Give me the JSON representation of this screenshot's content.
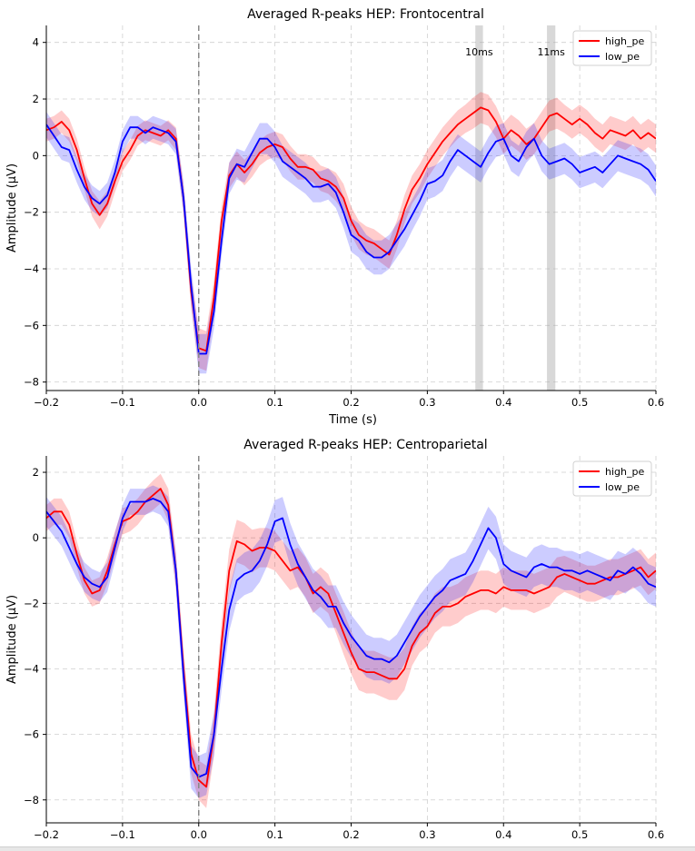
{
  "chart_data": [
    {
      "type": "line",
      "title": "Averaged R-peaks HEP: Frontocentral",
      "xlabel": "Time (s)",
      "ylabel": "Amplitude (µV)",
      "xlim": [
        -0.2,
        0.6
      ],
      "ylim": [
        -8.3,
        4.6
      ],
      "xticks": [
        -0.2,
        -0.1,
        0.0,
        0.1,
        0.2,
        0.3,
        0.4,
        0.5,
        0.6
      ],
      "xtick_labels": [
        "−0.2",
        "−0.1",
        "0.0",
        "0.1",
        "0.2",
        "0.3",
        "0.4",
        "0.5",
        "0.6"
      ],
      "yticks": [
        -8,
        -6,
        -4,
        -2,
        0,
        2,
        4
      ],
      "ytick_labels": [
        "−8",
        "−6",
        "−4",
        "−2",
        "0",
        "2",
        "4"
      ],
      "grid": true,
      "legend_position": "top-right",
      "event_line_x": 0.0,
      "x": [
        -0.2,
        -0.19,
        -0.18,
        -0.17,
        -0.16,
        -0.15,
        -0.14,
        -0.13,
        -0.12,
        -0.11,
        -0.1,
        -0.09,
        -0.08,
        -0.07,
        -0.06,
        -0.05,
        -0.04,
        -0.03,
        -0.02,
        -0.01,
        0.0,
        0.01,
        0.02,
        0.03,
        0.04,
        0.05,
        0.06,
        0.07,
        0.08,
        0.09,
        0.1,
        0.11,
        0.12,
        0.13,
        0.14,
        0.15,
        0.16,
        0.17,
        0.18,
        0.19,
        0.2,
        0.21,
        0.22,
        0.23,
        0.24,
        0.25,
        0.26,
        0.27,
        0.28,
        0.29,
        0.3,
        0.31,
        0.32,
        0.33,
        0.34,
        0.35,
        0.36,
        0.37,
        0.38,
        0.39,
        0.4,
        0.41,
        0.42,
        0.43,
        0.44,
        0.45,
        0.46,
        0.47,
        0.48,
        0.49,
        0.5,
        0.51,
        0.52,
        0.53,
        0.54,
        0.55,
        0.56,
        0.57,
        0.58,
        0.59,
        0.6
      ],
      "series": [
        {
          "name": "high_pe",
          "color": "#ff0000",
          "band_color": "#ff0000",
          "values": [
            0.9,
            1.0,
            1.2,
            0.9,
            0.2,
            -0.8,
            -1.7,
            -2.1,
            -1.7,
            -0.9,
            -0.2,
            0.2,
            0.7,
            0.9,
            0.8,
            0.7,
            0.9,
            0.6,
            -1.5,
            -4.8,
            -6.8,
            -6.9,
            -5.0,
            -2.3,
            -0.7,
            -0.3,
            -0.6,
            -0.3,
            0.1,
            0.3,
            0.4,
            0.3,
            -0.1,
            -0.4,
            -0.4,
            -0.5,
            -0.8,
            -0.9,
            -1.1,
            -1.5,
            -2.3,
            -2.8,
            -3.0,
            -3.1,
            -3.3,
            -3.5,
            -2.8,
            -1.9,
            -1.2,
            -0.8,
            -0.3,
            0.1,
            0.5,
            0.8,
            1.1,
            1.3,
            1.5,
            1.7,
            1.6,
            1.2,
            0.6,
            0.9,
            0.7,
            0.4,
            0.6,
            1.0,
            1.4,
            1.5,
            1.3,
            1.1,
            1.3,
            1.1,
            0.8,
            0.6,
            0.9,
            0.8,
            0.7,
            0.9,
            0.6,
            0.8,
            0.6
          ],
          "error": [
            0.4,
            0.4,
            0.4,
            0.4,
            0.4,
            0.4,
            0.45,
            0.5,
            0.45,
            0.4,
            0.35,
            0.35,
            0.35,
            0.35,
            0.35,
            0.35,
            0.35,
            0.4,
            0.5,
            0.6,
            0.7,
            0.7,
            0.6,
            0.5,
            0.45,
            0.45,
            0.45,
            0.45,
            0.45,
            0.45,
            0.45,
            0.45,
            0.45,
            0.45,
            0.45,
            0.45,
            0.45,
            0.45,
            0.5,
            0.5,
            0.5,
            0.5,
            0.5,
            0.5,
            0.5,
            0.5,
            0.5,
            0.5,
            0.5,
            0.5,
            0.5,
            0.5,
            0.5,
            0.5,
            0.5,
            0.5,
            0.55,
            0.55,
            0.55,
            0.55,
            0.55,
            0.55,
            0.55,
            0.55,
            0.55,
            0.55,
            0.55,
            0.55,
            0.5,
            0.5,
            0.5,
            0.5,
            0.5,
            0.5,
            0.5,
            0.5,
            0.5,
            0.5,
            0.5,
            0.5,
            0.5
          ]
        },
        {
          "name": "low_pe",
          "color": "#0000ff",
          "band_color": "#0000ff",
          "values": [
            1.1,
            0.7,
            0.3,
            0.2,
            -0.5,
            -1.1,
            -1.5,
            -1.7,
            -1.4,
            -0.6,
            0.5,
            1.0,
            1.0,
            0.8,
            1.0,
            0.9,
            0.8,
            0.5,
            -1.5,
            -4.6,
            -7.0,
            -7.0,
            -5.5,
            -3.0,
            -0.8,
            -0.3,
            -0.4,
            0.1,
            0.6,
            0.6,
            0.3,
            -0.2,
            -0.4,
            -0.6,
            -0.8,
            -1.1,
            -1.1,
            -1.0,
            -1.3,
            -2.0,
            -2.8,
            -3.0,
            -3.4,
            -3.6,
            -3.6,
            -3.4,
            -3.0,
            -2.6,
            -2.1,
            -1.6,
            -1.0,
            -0.9,
            -0.7,
            -0.2,
            0.2,
            0.0,
            -0.2,
            -0.4,
            0.1,
            0.5,
            0.6,
            0.0,
            -0.2,
            0.3,
            0.6,
            0.0,
            -0.3,
            -0.2,
            -0.1,
            -0.3,
            -0.6,
            -0.5,
            -0.4,
            -0.6,
            -0.3,
            0.0,
            -0.1,
            -0.2,
            -0.3,
            -0.5,
            -0.9
          ],
          "error": [
            0.45,
            0.45,
            0.45,
            0.45,
            0.45,
            0.45,
            0.45,
            0.45,
            0.45,
            0.45,
            0.4,
            0.4,
            0.4,
            0.4,
            0.4,
            0.4,
            0.4,
            0.45,
            0.55,
            0.65,
            0.7,
            0.7,
            0.6,
            0.55,
            0.55,
            0.55,
            0.55,
            0.55,
            0.55,
            0.55,
            0.55,
            0.55,
            0.55,
            0.55,
            0.55,
            0.55,
            0.55,
            0.55,
            0.55,
            0.55,
            0.6,
            0.6,
            0.6,
            0.6,
            0.6,
            0.6,
            0.6,
            0.6,
            0.55,
            0.55,
            0.55,
            0.55,
            0.55,
            0.55,
            0.55,
            0.55,
            0.55,
            0.55,
            0.55,
            0.55,
            0.55,
            0.55,
            0.55,
            0.55,
            0.55,
            0.55,
            0.55,
            0.55,
            0.55,
            0.55,
            0.55,
            0.55,
            0.55,
            0.55,
            0.55,
            0.55,
            0.55,
            0.55,
            0.55,
            0.55,
            0.55
          ]
        }
      ],
      "highlight_regions": [
        {
          "label": "10ms",
          "x_start": 0.363,
          "x_end": 0.373
        },
        {
          "label": "11ms",
          "x_start": 0.457,
          "x_end": 0.468
        }
      ]
    },
    {
      "type": "line",
      "title": "Averaged R-peaks HEP: Centroparietal",
      "xlabel": "Time (s)",
      "ylabel": "Amplitude (µV)",
      "xlim": [
        -0.2,
        0.6
      ],
      "ylim": [
        -8.7,
        2.5
      ],
      "xticks": [
        -0.2,
        -0.1,
        0.0,
        0.1,
        0.2,
        0.3,
        0.4,
        0.5,
        0.6
      ],
      "xtick_labels": [
        "−0.2",
        "−0.1",
        "0.0",
        "0.1",
        "0.2",
        "0.3",
        "0.4",
        "0.5",
        "0.6"
      ],
      "yticks": [
        -8,
        -6,
        -4,
        -2,
        0,
        2
      ],
      "ytick_labels": [
        "−8",
        "−6",
        "−4",
        "−2",
        "0",
        "2"
      ],
      "grid": true,
      "legend_position": "top-right",
      "event_line_x": 0.0,
      "x": [
        -0.2,
        -0.19,
        -0.18,
        -0.17,
        -0.16,
        -0.15,
        -0.14,
        -0.13,
        -0.12,
        -0.11,
        -0.1,
        -0.09,
        -0.08,
        -0.07,
        -0.06,
        -0.05,
        -0.04,
        -0.03,
        -0.02,
        -0.01,
        0.0,
        0.01,
        0.02,
        0.03,
        0.04,
        0.05,
        0.06,
        0.07,
        0.08,
        0.09,
        0.1,
        0.11,
        0.12,
        0.13,
        0.14,
        0.15,
        0.16,
        0.17,
        0.18,
        0.19,
        0.2,
        0.21,
        0.22,
        0.23,
        0.24,
        0.25,
        0.26,
        0.27,
        0.28,
        0.29,
        0.3,
        0.31,
        0.32,
        0.33,
        0.34,
        0.35,
        0.36,
        0.37,
        0.38,
        0.39,
        0.4,
        0.41,
        0.42,
        0.43,
        0.44,
        0.45,
        0.46,
        0.47,
        0.48,
        0.49,
        0.5,
        0.51,
        0.52,
        0.53,
        0.54,
        0.55,
        0.56,
        0.57,
        0.58,
        0.59,
        0.6
      ],
      "series": [
        {
          "name": "high_pe",
          "color": "#ff0000",
          "band_color": "#ff0000",
          "values": [
            0.6,
            0.8,
            0.8,
            0.4,
            -0.5,
            -1.3,
            -1.7,
            -1.6,
            -1.0,
            -0.2,
            0.5,
            0.6,
            0.8,
            1.1,
            1.3,
            1.5,
            1.0,
            -1.0,
            -4.0,
            -6.6,
            -7.4,
            -7.6,
            -6.0,
            -3.2,
            -1.0,
            -0.1,
            -0.2,
            -0.4,
            -0.3,
            -0.3,
            -0.4,
            -0.7,
            -1.0,
            -0.9,
            -1.2,
            -1.7,
            -1.5,
            -1.7,
            -2.3,
            -2.9,
            -3.5,
            -4.0,
            -4.1,
            -4.1,
            -4.2,
            -4.3,
            -4.3,
            -4.0,
            -3.3,
            -2.9,
            -2.7,
            -2.3,
            -2.1,
            -2.1,
            -2.0,
            -1.8,
            -1.7,
            -1.6,
            -1.6,
            -1.7,
            -1.5,
            -1.6,
            -1.6,
            -1.6,
            -1.7,
            -1.6,
            -1.5,
            -1.2,
            -1.1,
            -1.2,
            -1.3,
            -1.4,
            -1.4,
            -1.3,
            -1.2,
            -1.2,
            -1.1,
            -1.0,
            -0.9,
            -1.2,
            -1.0
          ],
          "error": [
            0.4,
            0.4,
            0.4,
            0.4,
            0.4,
            0.4,
            0.4,
            0.4,
            0.4,
            0.4,
            0.4,
            0.4,
            0.4,
            0.4,
            0.45,
            0.45,
            0.5,
            0.55,
            0.6,
            0.6,
            0.6,
            0.65,
            0.65,
            0.65,
            0.65,
            0.65,
            0.65,
            0.65,
            0.6,
            0.6,
            0.6,
            0.6,
            0.6,
            0.6,
            0.6,
            0.6,
            0.6,
            0.6,
            0.6,
            0.65,
            0.65,
            0.65,
            0.65,
            0.65,
            0.65,
            0.65,
            0.65,
            0.65,
            0.6,
            0.6,
            0.6,
            0.6,
            0.6,
            0.6,
            0.6,
            0.6,
            0.6,
            0.6,
            0.6,
            0.6,
            0.6,
            0.6,
            0.6,
            0.6,
            0.6,
            0.6,
            0.6,
            0.6,
            0.55,
            0.55,
            0.55,
            0.55,
            0.55,
            0.55,
            0.55,
            0.55,
            0.55,
            0.55,
            0.55,
            0.55,
            0.55
          ]
        },
        {
          "name": "low_pe",
          "color": "#0000ff",
          "band_color": "#0000ff",
          "values": [
            0.8,
            0.5,
            0.2,
            -0.3,
            -0.8,
            -1.2,
            -1.4,
            -1.5,
            -1.2,
            -0.3,
            0.6,
            1.1,
            1.1,
            1.1,
            1.2,
            1.1,
            0.8,
            -1.0,
            -4.2,
            -7.0,
            -7.3,
            -7.2,
            -6.0,
            -4.0,
            -2.2,
            -1.3,
            -1.1,
            -1.0,
            -0.7,
            -0.2,
            0.5,
            0.6,
            -0.2,
            -0.8,
            -1.2,
            -1.6,
            -1.8,
            -2.1,
            -2.1,
            -2.6,
            -3.0,
            -3.3,
            -3.6,
            -3.7,
            -3.7,
            -3.8,
            -3.6,
            -3.2,
            -2.8,
            -2.4,
            -2.1,
            -1.8,
            -1.6,
            -1.3,
            -1.2,
            -1.1,
            -0.7,
            -0.2,
            0.3,
            0.0,
            -0.8,
            -1.0,
            -1.1,
            -1.2,
            -0.9,
            -0.8,
            -0.9,
            -0.9,
            -1.0,
            -1.0,
            -1.1,
            -1.0,
            -1.1,
            -1.2,
            -1.3,
            -1.0,
            -1.1,
            -0.9,
            -1.1,
            -1.4,
            -1.5
          ],
          "error": [
            0.45,
            0.45,
            0.45,
            0.45,
            0.45,
            0.45,
            0.45,
            0.45,
            0.45,
            0.45,
            0.4,
            0.4,
            0.4,
            0.4,
            0.4,
            0.4,
            0.45,
            0.55,
            0.6,
            0.65,
            0.65,
            0.65,
            0.65,
            0.65,
            0.65,
            0.65,
            0.65,
            0.65,
            0.65,
            0.65,
            0.65,
            0.65,
            0.65,
            0.65,
            0.65,
            0.65,
            0.65,
            0.65,
            0.65,
            0.65,
            0.65,
            0.65,
            0.65,
            0.65,
            0.65,
            0.65,
            0.65,
            0.65,
            0.65,
            0.65,
            0.65,
            0.65,
            0.65,
            0.65,
            0.65,
            0.65,
            0.65,
            0.65,
            0.65,
            0.65,
            0.6,
            0.6,
            0.6,
            0.6,
            0.6,
            0.6,
            0.6,
            0.6,
            0.6,
            0.6,
            0.6,
            0.6,
            0.6,
            0.6,
            0.6,
            0.6,
            0.6,
            0.6,
            0.6,
            0.6,
            0.6
          ]
        }
      ]
    }
  ]
}
